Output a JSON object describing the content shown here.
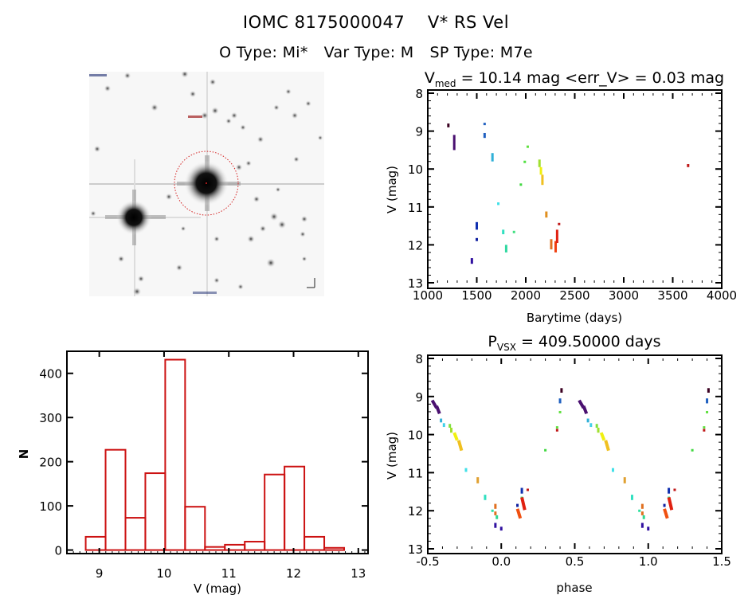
{
  "header": {
    "object_id": "IOMC 8175000047",
    "object_name": "V* RS Vel",
    "o_type": "O Type: Mi*",
    "var_type": "Var Type: M",
    "sp_type": "SP Type: M7e"
  },
  "thumbnail": {
    "description": "Sky image cutout centered on target (inverted grayscale) with red dashed aperture circle",
    "aperture_color": "#d42020"
  },
  "chart_data": [
    {
      "id": "light_curve",
      "type": "scatter",
      "title": "V_med = 10.14 mag <err_V> = 0.03 mag",
      "title_main": "V",
      "title_sub": "med",
      "title_rest": " = 10.14 mag <err_V> = 0.03 mag",
      "xlabel": "Barytime (days)",
      "ylabel": "V (mag)",
      "xlim": [
        1000,
        4000
      ],
      "ylim": [
        13,
        8
      ],
      "y_inverted": true,
      "xticks": [
        1000,
        1500,
        2000,
        2500,
        3000,
        3500,
        4000
      ],
      "yticks": [
        8,
        9,
        10,
        11,
        12,
        13
      ],
      "segments": [
        {
          "t": 1210,
          "v": [
            8.8,
            8.9
          ],
          "color": "#3a0020"
        },
        {
          "t": 1270,
          "v": [
            9.1,
            9.5
          ],
          "color": "#4a1070"
        },
        {
          "t": 1450,
          "v": [
            12.35,
            12.5
          ],
          "color": "#3010a0"
        },
        {
          "t": 1500,
          "v": [
            11.82,
            11.9
          ],
          "color": "#1020a0"
        },
        {
          "t": 1500,
          "v": [
            11.4,
            11.6
          ],
          "color": "#1030b0"
        },
        {
          "t": 1580,
          "v": [
            8.78,
            8.84
          ],
          "color": "#2060c0"
        },
        {
          "t": 1580,
          "v": [
            9.05,
            9.18
          ],
          "color": "#2060c0"
        },
        {
          "t": 1660,
          "v": [
            9.58,
            9.8
          ],
          "color": "#30b0d8"
        },
        {
          "t": 1720,
          "v": [
            10.88,
            10.95
          ],
          "color": "#40e0e8"
        },
        {
          "t": 1770,
          "v": [
            11.6,
            11.72
          ],
          "color": "#30e0c0"
        },
        {
          "t": 1800,
          "v": [
            12.0,
            12.2
          ],
          "color": "#30d8a0"
        },
        {
          "t": 1880,
          "v": [
            11.63,
            11.68
          ],
          "color": "#40e080"
        },
        {
          "t": 1950,
          "v": [
            10.38,
            10.43
          ],
          "color": "#40d840"
        },
        {
          "t": 1990,
          "v": [
            9.78,
            9.84
          ],
          "color": "#50e040"
        },
        {
          "t": 2020,
          "v": [
            9.38,
            9.44
          ],
          "color": "#60e040"
        },
        {
          "t": 2140,
          "v": [
            9.75,
            9.95
          ],
          "color": "#a0e030"
        },
        {
          "t": 2155,
          "v": [
            9.95,
            10.15
          ],
          "color": "#f0f010"
        },
        {
          "t": 2170,
          "v": [
            10.15,
            10.42
          ],
          "color": "#f0c020"
        },
        {
          "t": 2210,
          "v": [
            11.12,
            11.28
          ],
          "color": "#e09020"
        },
        {
          "t": 2260,
          "v": [
            11.85,
            12.12
          ],
          "color": "#e07020"
        },
        {
          "t": 2305,
          "v": [
            11.9,
            12.2
          ],
          "color": "#f04010"
        },
        {
          "t": 2320,
          "v": [
            11.6,
            11.95
          ],
          "color": "#e02010"
        },
        {
          "t": 2340,
          "v": [
            11.42,
            11.48
          ],
          "color": "#c01818"
        },
        {
          "t": 3657,
          "v": [
            9.87,
            9.95
          ],
          "color": "#c01818"
        }
      ]
    },
    {
      "id": "histogram",
      "type": "bar",
      "title": "",
      "xlabel": "V (mag)",
      "ylabel": "N",
      "xlim": [
        8.5,
        13.15
      ],
      "ylim": [
        -8,
        450
      ],
      "xticks": [
        9,
        10,
        11,
        12,
        13
      ],
      "yticks": [
        0,
        100,
        200,
        300,
        400
      ],
      "bin_start": 8.79,
      "bin_width": 0.307,
      "values": [
        30,
        227,
        73,
        174,
        431,
        98,
        7,
        12,
        19,
        171,
        189,
        30,
        5
      ],
      "bar_color": "#cc1111"
    },
    {
      "id": "phase_curve",
      "type": "scatter",
      "title_main": "P",
      "title_sub": "VSX",
      "title_rest": " = 409.50000 days",
      "title": "P_VSX = 409.50000 days",
      "xlabel": "phase",
      "ylabel": "V (mag)",
      "xlim": [
        -0.5,
        1.5
      ],
      "ylim": [
        13,
        8
      ],
      "y_inverted": true,
      "xticks": [
        -0.5,
        0.0,
        0.5,
        1.0,
        1.5
      ],
      "xtick_labels": [
        "-0.5",
        "0.0",
        "0.5",
        "1.0",
        "1.5"
      ],
      "yticks": [
        8,
        9,
        10,
        11,
        12,
        13
      ],
      "period_days": 409.5,
      "segments": [
        {
          "p": -0.47,
          "v": [
            9.1,
            9.3
          ],
          "dp": 0.03,
          "color": "#4a1070"
        },
        {
          "p": -0.44,
          "v": [
            9.25,
            9.45
          ],
          "dp": 0.02,
          "color": "#4a1070"
        },
        {
          "p": -0.41,
          "v": [
            9.58,
            9.68
          ],
          "color": "#30b0d8"
        },
        {
          "p": -0.39,
          "v": [
            9.7,
            9.8
          ],
          "color": "#40d0e8"
        },
        {
          "p": -0.35,
          "v": [
            9.72,
            9.82
          ],
          "color": "#80e040"
        },
        {
          "p": -0.34,
          "v": [
            9.82,
            9.95
          ],
          "color": "#a0e030"
        },
        {
          "p": -0.32,
          "v": [
            9.95,
            10.15
          ],
          "dp": 0.02,
          "color": "#f0f010"
        },
        {
          "p": -0.29,
          "v": [
            10.15,
            10.42
          ],
          "dp": 0.02,
          "color": "#f0c020"
        },
        {
          "p": -0.24,
          "v": [
            10.88,
            10.98
          ],
          "color": "#40e0e8"
        },
        {
          "p": -0.16,
          "v": [
            11.12,
            11.28
          ],
          "color": "#e0a030"
        },
        {
          "p": -0.11,
          "v": [
            11.58,
            11.72
          ],
          "color": "#30e0c0"
        },
        {
          "p": -0.06,
          "v": [
            11.97,
            12.02
          ],
          "color": "#30e0a0"
        },
        {
          "p": -0.04,
          "v": [
            11.82,
            11.95
          ],
          "color": "#e07020"
        },
        {
          "p": -0.04,
          "v": [
            12.02,
            12.12
          ],
          "color": "#e07020"
        },
        {
          "p": -0.03,
          "v": [
            12.12,
            12.22
          ],
          "color": "#30d890"
        },
        {
          "p": -0.04,
          "v": [
            12.32,
            12.45
          ],
          "color": "#3010a0"
        },
        {
          "p": 0.0,
          "v": [
            12.42,
            12.52
          ],
          "color": "#3010a0"
        },
        {
          "p": 0.11,
          "v": [
            11.82,
            11.9
          ],
          "color": "#1020a0"
        },
        {
          "p": 0.14,
          "v": [
            11.4,
            11.55
          ],
          "color": "#1030b0"
        },
        {
          "p": 0.14,
          "v": [
            11.63,
            11.68
          ],
          "color": "#40e080"
        },
        {
          "p": 0.11,
          "v": [
            11.95,
            12.2
          ],
          "dp": 0.02,
          "color": "#f05010"
        },
        {
          "p": 0.14,
          "v": [
            11.65,
            11.98
          ],
          "dp": 0.02,
          "color": "#e02010"
        },
        {
          "p": 0.18,
          "v": [
            11.42,
            11.48
          ],
          "color": "#c01818"
        },
        {
          "p": 0.3,
          "v": [
            10.38,
            10.43
          ],
          "color": "#40d840"
        },
        {
          "p": 0.38,
          "v": [
            9.78,
            9.84
          ],
          "color": "#60e040"
        },
        {
          "p": 0.38,
          "v": [
            9.85,
            9.92
          ],
          "color": "#c01818"
        },
        {
          "p": 0.4,
          "v": [
            9.38,
            9.44
          ],
          "color": "#60e040"
        },
        {
          "p": 0.4,
          "v": [
            9.05,
            9.18
          ],
          "color": "#2060c0"
        },
        {
          "p": 0.41,
          "v": [
            8.78,
            8.9
          ],
          "color": "#3a0020"
        }
      ],
      "repeat_offset": 1.0
    }
  ]
}
